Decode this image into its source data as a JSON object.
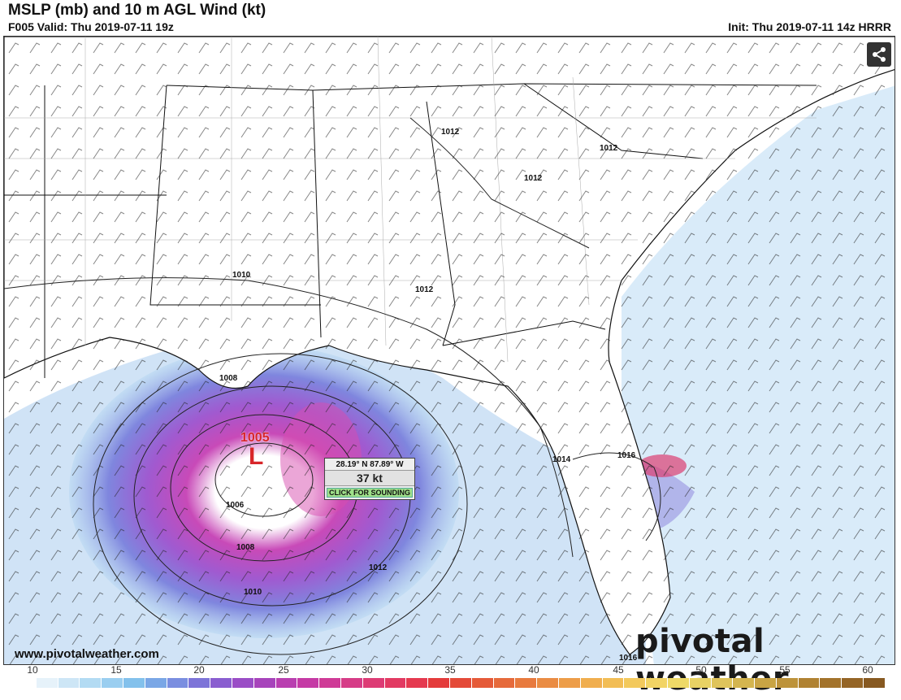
{
  "header": {
    "title": "MSLP (mb) and 10 m AGL Wind (kt)",
    "valid": "F005 Valid: Thu 2019-07-11 19z",
    "init": "Init: Thu 2019-07-11 14z HRRR"
  },
  "low_center": {
    "pressure": "1005",
    "letter": "L"
  },
  "readout": {
    "coords": "28.19° N 87.89° W",
    "speed": "37 kt",
    "sounding_button": "CLICK FOR SOUNDING"
  },
  "isobar_labels": [
    "1012",
    "1012",
    "1012",
    "1010",
    "1012",
    "1008",
    "1006",
    "1008",
    "1010",
    "1012",
    "1014",
    "1016",
    "1016"
  ],
  "footer": {
    "website": "www.pivotalweather.com",
    "brand": "pivotal weather"
  },
  "legend": {
    "ticks": [
      "10",
      "15",
      "20",
      "25",
      "30",
      "35",
      "40",
      "45",
      "50",
      "55",
      "60"
    ],
    "colors": [
      "#ffffff",
      "#e6f2fa",
      "#cde6f6",
      "#b3dbf3",
      "#9acef0",
      "#83c1ec",
      "#7aa7e6",
      "#7a8ee0",
      "#7d74d8",
      "#8a5ed0",
      "#9a4dc6",
      "#a744bb",
      "#b93fb0",
      "#c53aa5",
      "#cf3b97",
      "#d63c87",
      "#dd3c75",
      "#e23a62",
      "#e5394f",
      "#e43b3b",
      "#e44a38",
      "#e55a38",
      "#e66a3b",
      "#e87a3e",
      "#ea8c43",
      "#ed9d48",
      "#f0ae4e",
      "#f2bd55",
      "#f3c95c",
      "#f2d464",
      "#eed967",
      "#e8d264",
      "#dfc45b",
      "#d4b54f",
      "#c9a444",
      "#bd933a",
      "#b08232",
      "#a3732b",
      "#956526",
      "#875921"
    ]
  }
}
